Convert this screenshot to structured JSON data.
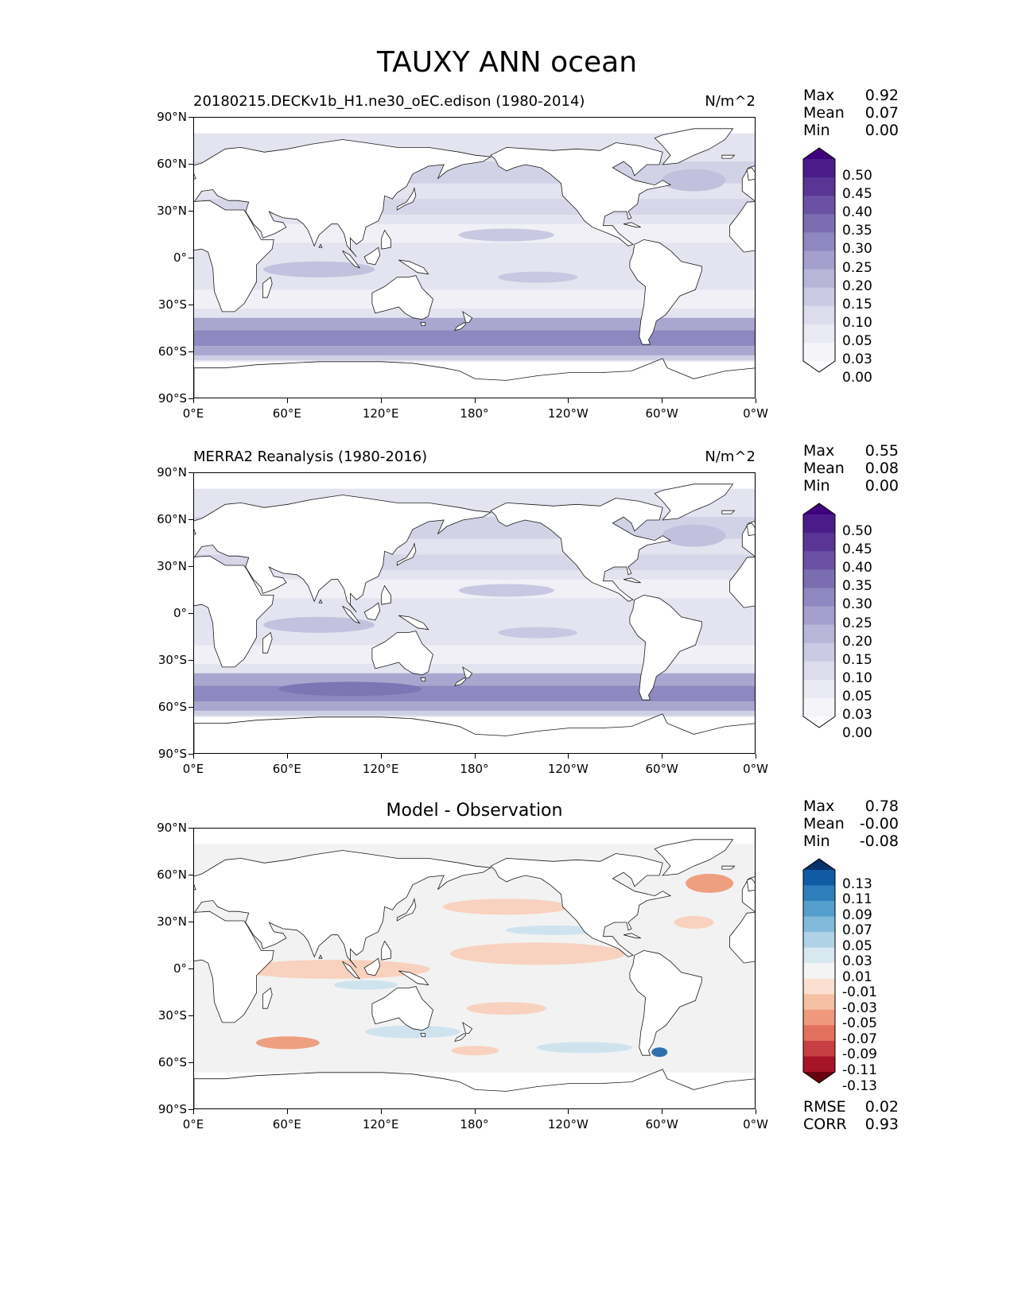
{
  "title": "TAUXY ANN ocean",
  "lat_labels": [
    "90°N",
    "60°N",
    "30°N",
    "0°",
    "30°S",
    "60°S",
    "90°S"
  ],
  "lon_labels": [
    "0°E",
    "60°E",
    "120°E",
    "180°",
    "120°W",
    "60°W",
    "0°W"
  ],
  "panels": [
    {
      "title_left": "20180215.DECKv1b_H1.ne30_oEC.edison (1980-2014)",
      "title_right": "N/m^2",
      "title_center": "",
      "stats": [
        {
          "k": "Max",
          "v": "0.92"
        },
        {
          "k": "Mean",
          "v": "0.07"
        },
        {
          "k": "Min",
          "v": "0.00"
        }
      ],
      "colorbar": {
        "levels": [
          "0.50",
          "0.45",
          "0.40",
          "0.35",
          "0.30",
          "0.25",
          "0.20",
          "0.15",
          "0.10",
          "0.05",
          "0.03",
          "0.00"
        ],
        "colors": [
          "#3f007d",
          "#4c1b8a",
          "#5a3596",
          "#6a51a3",
          "#7b6db2",
          "#8f87c0",
          "#a49fcc",
          "#b7b6d9",
          "#cacae4",
          "#dcdcec",
          "#eaeaf4",
          "#f4f4f9",
          "#fcfbfd"
        ]
      },
      "footer": []
    },
    {
      "title_left": "MERRA2 Reanalysis (1980-2016)",
      "title_right": "N/m^2",
      "title_center": "",
      "stats": [
        {
          "k": "Max",
          "v": "0.55"
        },
        {
          "k": "Mean",
          "v": "0.08"
        },
        {
          "k": "Min",
          "v": "0.00"
        }
      ],
      "colorbar": {
        "levels": [
          "0.50",
          "0.45",
          "0.40",
          "0.35",
          "0.30",
          "0.25",
          "0.20",
          "0.15",
          "0.10",
          "0.05",
          "0.03",
          "0.00"
        ],
        "colors": [
          "#3f007d",
          "#4c1b8a",
          "#5a3596",
          "#6a51a3",
          "#7b6db2",
          "#8f87c0",
          "#a49fcc",
          "#b7b6d9",
          "#cacae4",
          "#dcdcec",
          "#eaeaf4",
          "#f4f4f9",
          "#fcfbfd"
        ]
      },
      "footer": []
    },
    {
      "title_left": "",
      "title_right": "",
      "title_center": "Model - Observation",
      "stats": [
        {
          "k": "Max",
          "v": "0.78"
        },
        {
          "k": "Mean",
          "v": "-0.00"
        },
        {
          "k": "Min",
          "v": "-0.08"
        }
      ],
      "colorbar": {
        "levels": [
          "0.13",
          "0.11",
          "0.09",
          "0.07",
          "0.05",
          "0.03",
          "0.01",
          "-0.01",
          "-0.03",
          "-0.05",
          "-0.07",
          "-0.09",
          "-0.11",
          "-0.13"
        ],
        "colors": [
          "#08306b",
          "#105ba4",
          "#2f7fbc",
          "#559fce",
          "#82badb",
          "#b0d2e7",
          "#d7e8f1",
          "#f4f4f4",
          "#fbe0d1",
          "#f7bfa3",
          "#f0987c",
          "#e1705c",
          "#c73f43",
          "#a51527",
          "#67000d"
        ]
      },
      "footer": [
        {
          "k": "RMSE",
          "v": "0.02"
        },
        {
          "k": "CORR",
          "v": "0.93"
        }
      ]
    }
  ],
  "colors": {
    "land": "#ffffff",
    "coast": "#1a1a1a",
    "field_seq_base": "#e4e4f0",
    "field_seq_band": "#a9a6cf",
    "field_seq_strong": "#8d88c0",
    "field_diff_base": "#f2f2f2",
    "field_diff_pos": "#cfe3ef",
    "field_diff_neg": "#f8d2bf",
    "field_diff_neg_strong": "#ee9f80",
    "field_diff_pos_strong": "#2e6fae"
  }
}
